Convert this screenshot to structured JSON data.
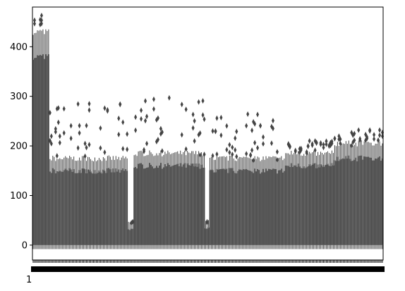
{
  "chart_data": {
    "type": "box",
    "title": "",
    "xlabel": "",
    "ylabel": "",
    "ylim": [
      -30,
      480
    ],
    "yticks": [
      0,
      100,
      200,
      300,
      400
    ],
    "grid": false,
    "legend": "none",
    "box_color": "#444444",
    "category_count": 250,
    "segments": [
      {
        "from": 0,
        "to": 12,
        "box_top": 380,
        "box_bottom": 0,
        "whisker_top": 430,
        "outlier_max": 463
      },
      {
        "from": 12,
        "to": 68,
        "box_top": 150,
        "box_bottom": 0,
        "whisker_top": 175,
        "outlier_max": 285
      },
      {
        "from": 68,
        "to": 72,
        "box_top": 30,
        "box_bottom": 0,
        "whisker_top": 45,
        "outlier_max": 45
      },
      {
        "from": 72,
        "to": 123,
        "box_top": 160,
        "box_bottom": 0,
        "whisker_top": 185,
        "outlier_max": 297
      },
      {
        "from": 123,
        "to": 126,
        "box_top": 30,
        "box_bottom": 0,
        "whisker_top": 45,
        "outlier_max": 45
      },
      {
        "from": 126,
        "to": 180,
        "box_top": 150,
        "box_bottom": 0,
        "whisker_top": 175,
        "outlier_max": 264
      },
      {
        "from": 180,
        "to": 215,
        "box_top": 160,
        "box_bottom": 0,
        "whisker_top": 185,
        "outlier_max": 210
      },
      {
        "from": 215,
        "to": 250,
        "box_top": 175,
        "box_bottom": 0,
        "whisker_top": 205,
        "outlier_max": 232
      }
    ]
  }
}
